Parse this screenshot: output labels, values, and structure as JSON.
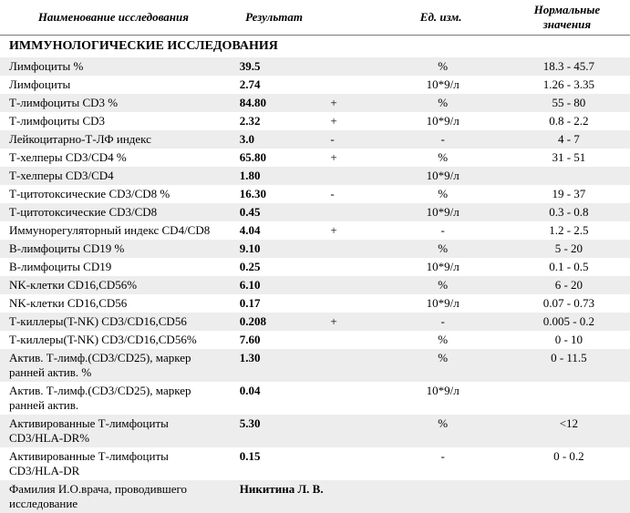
{
  "headers": {
    "name": "Наименование исследования",
    "result": "Результат",
    "unit": "Ед. изм.",
    "ref": "Нормальные значения"
  },
  "section_title": "ИММУНОЛОГИЧЕСКИЕ ИССЛЕДОВАНИЯ",
  "doctor_label": "Фамилия И.О.врача, проводившего исследование",
  "doctor_name": "Никитина Л. В.",
  "rows": [
    {
      "name": "Лимфоциты %",
      "result": "39.5",
      "flag": "",
      "unit": "%",
      "ref": "18.3 - 45.7",
      "stripe": true
    },
    {
      "name": "Лимфоциты",
      "result": "2.74",
      "flag": "",
      "unit": "10*9/л",
      "ref": "1.26 - 3.35",
      "stripe": false
    },
    {
      "name": "Т-лимфоциты CD3 %",
      "result": "84.80",
      "flag": "+",
      "unit": "%",
      "ref": "55 - 80",
      "stripe": true
    },
    {
      "name": "Т-лимфоциты CD3",
      "result": "2.32",
      "flag": "+",
      "unit": "10*9/л",
      "ref": "0.8 - 2.2",
      "stripe": false
    },
    {
      "name": "Лейкоцитарно-Т-ЛФ индекс",
      "result": "3.0",
      "flag": "-",
      "unit": "-",
      "ref": "4 - 7",
      "stripe": true
    },
    {
      "name": "Т-хелперы CD3/CD4 %",
      "result": "65.80",
      "flag": "+",
      "unit": "%",
      "ref": "31 - 51",
      "stripe": false
    },
    {
      "name": "Т-хелперы CD3/CD4",
      "result": "1.80",
      "flag": "",
      "unit": "10*9/л",
      "ref": "",
      "stripe": true
    },
    {
      "name": "Т-цитотоксические CD3/CD8 %",
      "result": "16.30",
      "flag": "-",
      "unit": "%",
      "ref": "19 - 37",
      "stripe": false
    },
    {
      "name": "Т-цитотоксические CD3/CD8",
      "result": "0.45",
      "flag": "",
      "unit": "10*9/л",
      "ref": "0.3 - 0.8",
      "stripe": true
    },
    {
      "name": "Иммунорегуляторный индекс CD4/CD8",
      "result": "4.04",
      "flag": "+",
      "unit": "-",
      "ref": "1.2 - 2.5",
      "stripe": false
    },
    {
      "name": "В-лимфоциты CD19 %",
      "result": "9.10",
      "flag": "",
      "unit": "%",
      "ref": "5 - 20",
      "stripe": true
    },
    {
      "name": "В-лимфоциты CD19",
      "result": "0.25",
      "flag": "",
      "unit": "10*9/л",
      "ref": "0.1 - 0.5",
      "stripe": false
    },
    {
      "name": "NK-клетки CD16,CD56%",
      "result": "6.10",
      "flag": "",
      "unit": "%",
      "ref": "6 - 20",
      "stripe": true
    },
    {
      "name": "NK-клетки CD16,CD56",
      "result": "0.17",
      "flag": "",
      "unit": "10*9/л",
      "ref": "0.07 - 0.73",
      "stripe": false
    },
    {
      "name": "Т-киллеры(T-NK) CD3/CD16,CD56",
      "result": "0.208",
      "flag": "+",
      "unit": "-",
      "ref": "0.005 - 0.2",
      "stripe": true
    },
    {
      "name": "Т-киллеры(T-NK) CD3/CD16,CD56%",
      "result": "7.60",
      "flag": "",
      "unit": "%",
      "ref": "0 - 10",
      "stripe": false
    },
    {
      "name": "Актив. Т-лимф.(CD3/CD25), маркер ранней актив. %",
      "result": "1.30",
      "flag": "",
      "unit": "%",
      "ref": "0 - 11.5",
      "stripe": true
    },
    {
      "name": "Актив. Т-лимф.(CD3/CD25), маркер ранней актив.",
      "result": "0.04",
      "flag": "",
      "unit": "10*9/л",
      "ref": "",
      "stripe": false
    },
    {
      "name": "Активированные Т-лимфоциты CD3/HLA-DR%",
      "result": "5.30",
      "flag": "",
      "unit": "%",
      "ref": "<12",
      "stripe": true
    },
    {
      "name": "Активированные Т-лимфоциты CD3/HLA-DR",
      "result": "0.15",
      "flag": "",
      "unit": "-",
      "ref": "0 - 0.2",
      "stripe": false
    }
  ]
}
